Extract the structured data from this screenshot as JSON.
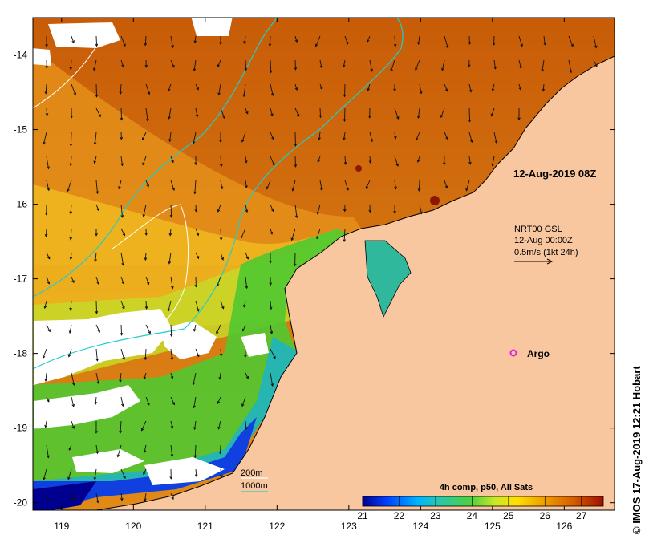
{
  "snapshot_label": "12-Aug-2019 08Z",
  "current_legend": {
    "line1": "NRT00 GSL",
    "line2": "12-Aug 00:00Z",
    "line3": "0.5m/s (1kt 24h)"
  },
  "argo_label": "Argo",
  "contour_legend": {
    "label_200": "200m",
    "label_1000": "1000m"
  },
  "colorbar": {
    "title": "4h comp, p50, All Sats",
    "min": 21,
    "max": 27.6,
    "ticks": [
      "21",
      "22",
      "23",
      "24",
      "25",
      "26",
      "27"
    ]
  },
  "credit": "© IMOS 17-Aug-2019 12:21 Hobart",
  "axes": {
    "lon_min": 118.6,
    "lon_max": 126.7,
    "lat_min": -20.1,
    "lat_max": -13.5,
    "lon_ticks": [
      "119",
      "120",
      "121",
      "122",
      "123",
      "124",
      "125",
      "126"
    ],
    "lat_ticks": [
      "-14",
      "-15",
      "-16",
      "-17",
      "-18",
      "-19",
      "-20"
    ]
  },
  "colors": {
    "land": "#f9c79f",
    "coast": "#000000",
    "contour_200": "#ffffff",
    "contour_1000": "#22cccc",
    "argo": "#dd22dd"
  }
}
